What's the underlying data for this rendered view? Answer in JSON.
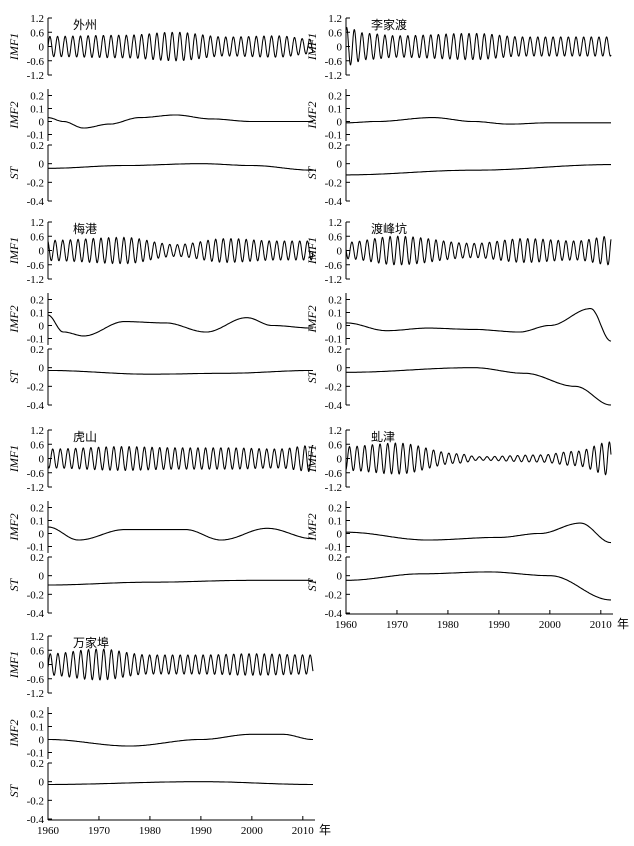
{
  "chart_data": {
    "type": "line",
    "x_range": [
      1960,
      2012
    ],
    "x_ticks": [
      "1960",
      "1970",
      "1980",
      "1990",
      "2000",
      "2010"
    ],
    "x_unit": "年",
    "row_labels": [
      "IMF1",
      "IMF2",
      "ST"
    ],
    "axes": {
      "IMF1": {
        "ylim": [
          -1.2,
          1.2
        ],
        "ticks": [
          "1.2",
          "0.6",
          "0",
          "-0.6",
          "-1.2"
        ],
        "tick_values": [
          1.2,
          0.6,
          0,
          -0.6,
          -1.2
        ]
      },
      "IMF2": {
        "ylim": [
          -0.15,
          0.25
        ],
        "ticks": [
          "0.2",
          "0.1",
          "0",
          "-0.1"
        ],
        "tick_values": [
          0.2,
          0.1,
          0,
          -0.1
        ]
      },
      "ST": {
        "ylim": [
          -0.4,
          0.2
        ],
        "ticks": [
          "0.2",
          "0",
          "-0.2",
          "-0.4"
        ],
        "tick_values": [
          0.2,
          0,
          -0.2,
          -0.4
        ]
      }
    },
    "stations": [
      {
        "name": "外州",
        "imf1": {
          "amp": 0.5,
          "period": 1.5,
          "env": [
            [
              1960,
              0.85
            ],
            [
              1975,
              0.95
            ],
            [
              1985,
              1.2
            ],
            [
              1995,
              0.8
            ],
            [
              2005,
              0.9
            ],
            [
              2012,
              0.6
            ]
          ]
        },
        "imf2": [
          [
            1960,
            0.03
          ],
          [
            1963,
            0.0
          ],
          [
            1967,
            -0.05
          ],
          [
            1972,
            -0.02
          ],
          [
            1978,
            0.03
          ],
          [
            1985,
            0.05
          ],
          [
            1992,
            0.02
          ],
          [
            2000,
            0.0
          ],
          [
            2012,
            0.0
          ]
        ],
        "st": [
          [
            1960,
            -0.05
          ],
          [
            1975,
            -0.02
          ],
          [
            1990,
            0.0
          ],
          [
            2000,
            -0.02
          ],
          [
            2012,
            -0.07
          ]
        ]
      },
      {
        "name": "李家渡",
        "imf1": {
          "amp": 0.5,
          "period": 1.5,
          "env": [
            [
              1960,
              1.6
            ],
            [
              1964,
              1.1
            ],
            [
              1970,
              0.9
            ],
            [
              1985,
              1.1
            ],
            [
              1995,
              0.8
            ],
            [
              2012,
              0.8
            ]
          ]
        },
        "imf2": [
          [
            1960,
            -0.01
          ],
          [
            1966,
            0.0
          ],
          [
            1977,
            0.03
          ],
          [
            1985,
            0.0
          ],
          [
            1992,
            -0.02
          ],
          [
            2000,
            -0.01
          ],
          [
            2012,
            -0.01
          ]
        ],
        "st": [
          [
            1960,
            -0.12
          ],
          [
            1985,
            -0.07
          ],
          [
            2012,
            -0.01
          ]
        ]
      },
      {
        "name": "梅港",
        "imf1": {
          "amp": 0.5,
          "period": 1.5,
          "env": [
            [
              1960,
              0.85
            ],
            [
              1975,
              1.1
            ],
            [
              1985,
              0.5
            ],
            [
              1995,
              1.0
            ],
            [
              2005,
              0.8
            ],
            [
              2012,
              0.8
            ]
          ]
        },
        "imf2": [
          [
            1960,
            0.08
          ],
          [
            1963,
            -0.05
          ],
          [
            1967,
            -0.08
          ],
          [
            1975,
            0.03
          ],
          [
            1983,
            0.02
          ],
          [
            1991,
            -0.05
          ],
          [
            1999,
            0.06
          ],
          [
            2004,
            0.0
          ],
          [
            2012,
            -0.02
          ]
        ],
        "st": [
          [
            1960,
            -0.03
          ],
          [
            1980,
            -0.07
          ],
          [
            1995,
            -0.06
          ],
          [
            2012,
            -0.03
          ]
        ]
      },
      {
        "name": "渡峰坑",
        "imf1": {
          "amp": 0.5,
          "period": 1.5,
          "env": [
            [
              1960,
              0.7
            ],
            [
              1970,
              1.2
            ],
            [
              1985,
              0.6
            ],
            [
              1995,
              1.0
            ],
            [
              2005,
              0.8
            ],
            [
              2012,
              1.2
            ]
          ]
        },
        "imf2": [
          [
            1960,
            0.02
          ],
          [
            1968,
            -0.04
          ],
          [
            1976,
            -0.02
          ],
          [
            1985,
            -0.03
          ],
          [
            1994,
            -0.05
          ],
          [
            2000,
            0.0
          ],
          [
            2008,
            0.13
          ],
          [
            2012,
            -0.12
          ]
        ],
        "st": [
          [
            1960,
            -0.05
          ],
          [
            1985,
            0.0
          ],
          [
            1995,
            -0.06
          ],
          [
            2005,
            -0.2
          ],
          [
            2012,
            -0.4
          ]
        ]
      },
      {
        "name": "虎山",
        "imf1": {
          "amp": 0.5,
          "period": 1.5,
          "env": [
            [
              1960,
              0.8
            ],
            [
              1975,
              1.0
            ],
            [
              1985,
              0.9
            ],
            [
              1995,
              0.9
            ],
            [
              2005,
              0.8
            ],
            [
              2012,
              1.1
            ]
          ]
        },
        "imf2": [
          [
            1960,
            0.05
          ],
          [
            1966,
            -0.05
          ],
          [
            1975,
            0.03
          ],
          [
            1981,
            0.03
          ],
          [
            1987,
            0.03
          ],
          [
            1994,
            -0.05
          ],
          [
            2003,
            0.04
          ],
          [
            2012,
            -0.04
          ]
        ],
        "st": [
          [
            1960,
            -0.1
          ],
          [
            1980,
            -0.07
          ],
          [
            2000,
            -0.05
          ],
          [
            2012,
            -0.05
          ]
        ]
      },
      {
        "name": "虬津",
        "imf1": {
          "amp": 0.5,
          "period": 1.5,
          "env": [
            [
              1960,
              1.0
            ],
            [
              1970,
              1.3
            ],
            [
              1982,
              0.4
            ],
            [
              1986,
              0.15
            ],
            [
              1998,
              0.3
            ],
            [
              2005,
              0.6
            ],
            [
              2012,
              1.4
            ]
          ]
        },
        "imf2": [
          [
            1960,
            0.01
          ],
          [
            1976,
            -0.05
          ],
          [
            1990,
            -0.03
          ],
          [
            1998,
            0.0
          ],
          [
            2006,
            0.08
          ],
          [
            2012,
            -0.07
          ]
        ],
        "st": [
          [
            1960,
            -0.05
          ],
          [
            1975,
            0.02
          ],
          [
            1988,
            0.04
          ],
          [
            2000,
            0.0
          ],
          [
            2012,
            -0.26
          ]
        ]
      },
      {
        "name": "万家埠",
        "imf1": {
          "amp": 0.5,
          "period": 1.5,
          "env": [
            [
              1960,
              0.9
            ],
            [
              1970,
              1.3
            ],
            [
              1980,
              0.8
            ],
            [
              1990,
              0.8
            ],
            [
              2000,
              0.9
            ],
            [
              2012,
              0.8
            ]
          ]
        },
        "imf2": [
          [
            1960,
            0.0
          ],
          [
            1976,
            -0.05
          ],
          [
            1990,
            0.0
          ],
          [
            2000,
            0.04
          ],
          [
            2006,
            0.04
          ],
          [
            2012,
            0.0
          ]
        ],
        "st": [
          [
            1960,
            -0.03
          ],
          [
            1990,
            0.0
          ],
          [
            2012,
            -0.03
          ]
        ]
      }
    ]
  }
}
